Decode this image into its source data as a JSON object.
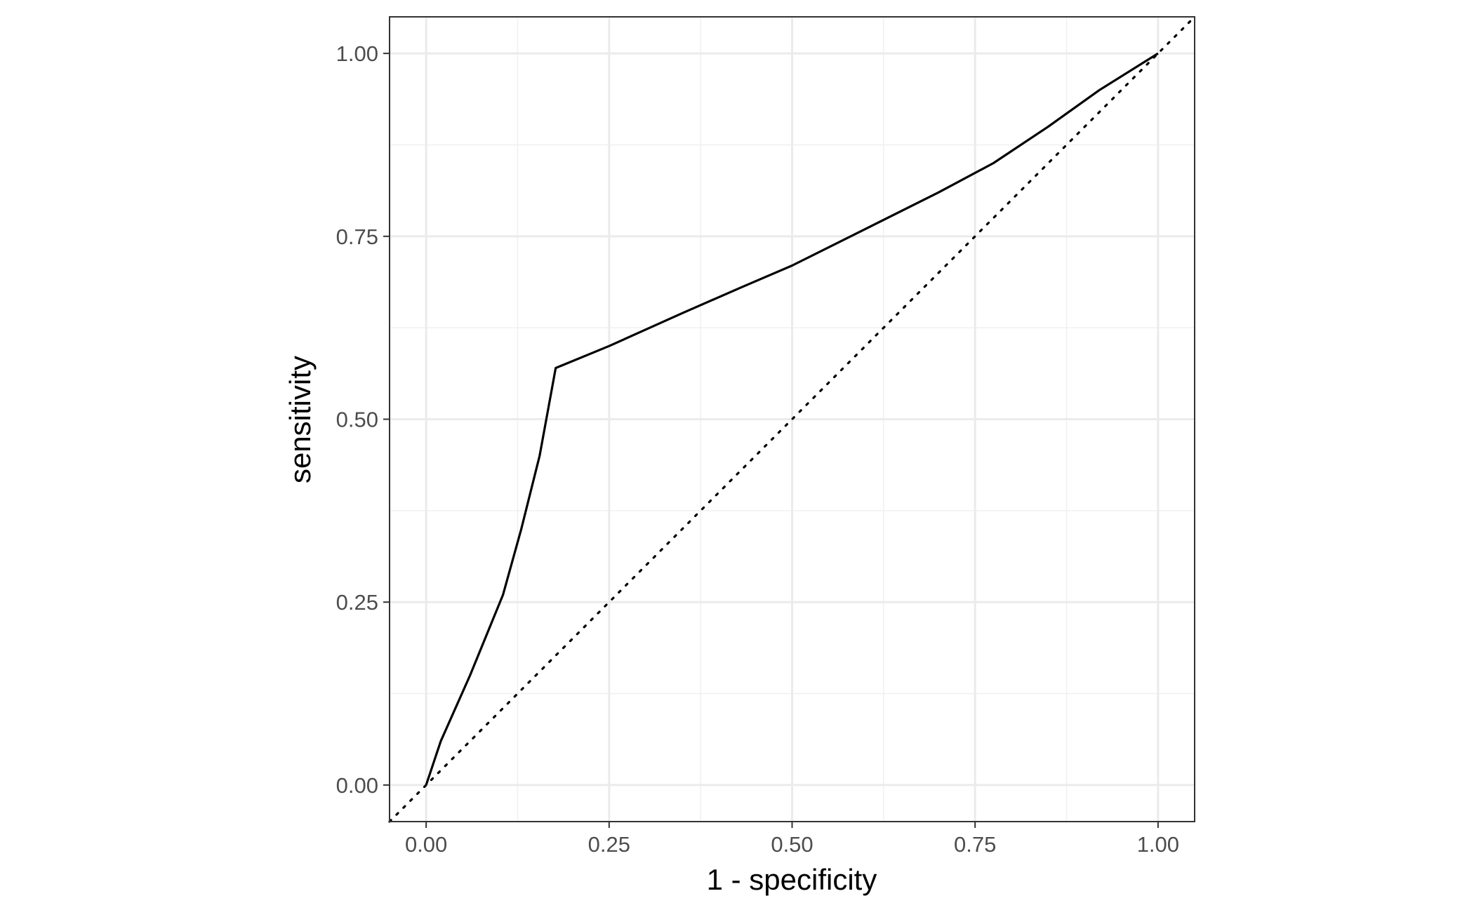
{
  "chart_data": {
    "type": "line",
    "title": "",
    "xlabel": "1 - specificity",
    "ylabel": "sensitivity",
    "xlim": [
      -0.05,
      1.05
    ],
    "ylim": [
      -0.05,
      1.05
    ],
    "x_ticks": [
      0,
      0.25,
      0.5,
      0.75,
      1
    ],
    "y_ticks": [
      0,
      0.25,
      0.5,
      0.75,
      1
    ],
    "x_tick_labels": [
      "0.00",
      "0.25",
      "0.50",
      "0.75",
      "1.00"
    ],
    "y_tick_labels": [
      "0.00",
      "0.25",
      "0.50",
      "0.75",
      "1.00"
    ],
    "grid": true,
    "legend": "none",
    "series": [
      {
        "style": "solid",
        "color": "#000000",
        "x": [
          0,
          0.02,
          0.06,
          0.105,
          0.13,
          0.155,
          0.177,
          0.25,
          0.35,
          0.43,
          0.5,
          0.6,
          0.7,
          0.775,
          0.85,
          0.92,
          1.0
        ],
        "y": [
          0,
          0.06,
          0.15,
          0.26,
          0.35,
          0.45,
          0.57,
          0.6,
          0.645,
          0.68,
          0.71,
          0.76,
          0.81,
          0.85,
          0.9,
          0.95,
          1.0
        ]
      },
      {
        "style": "dotted",
        "color": "#000000",
        "x": [
          -0.05,
          1.05
        ],
        "y": [
          -0.05,
          1.05
        ]
      }
    ]
  }
}
